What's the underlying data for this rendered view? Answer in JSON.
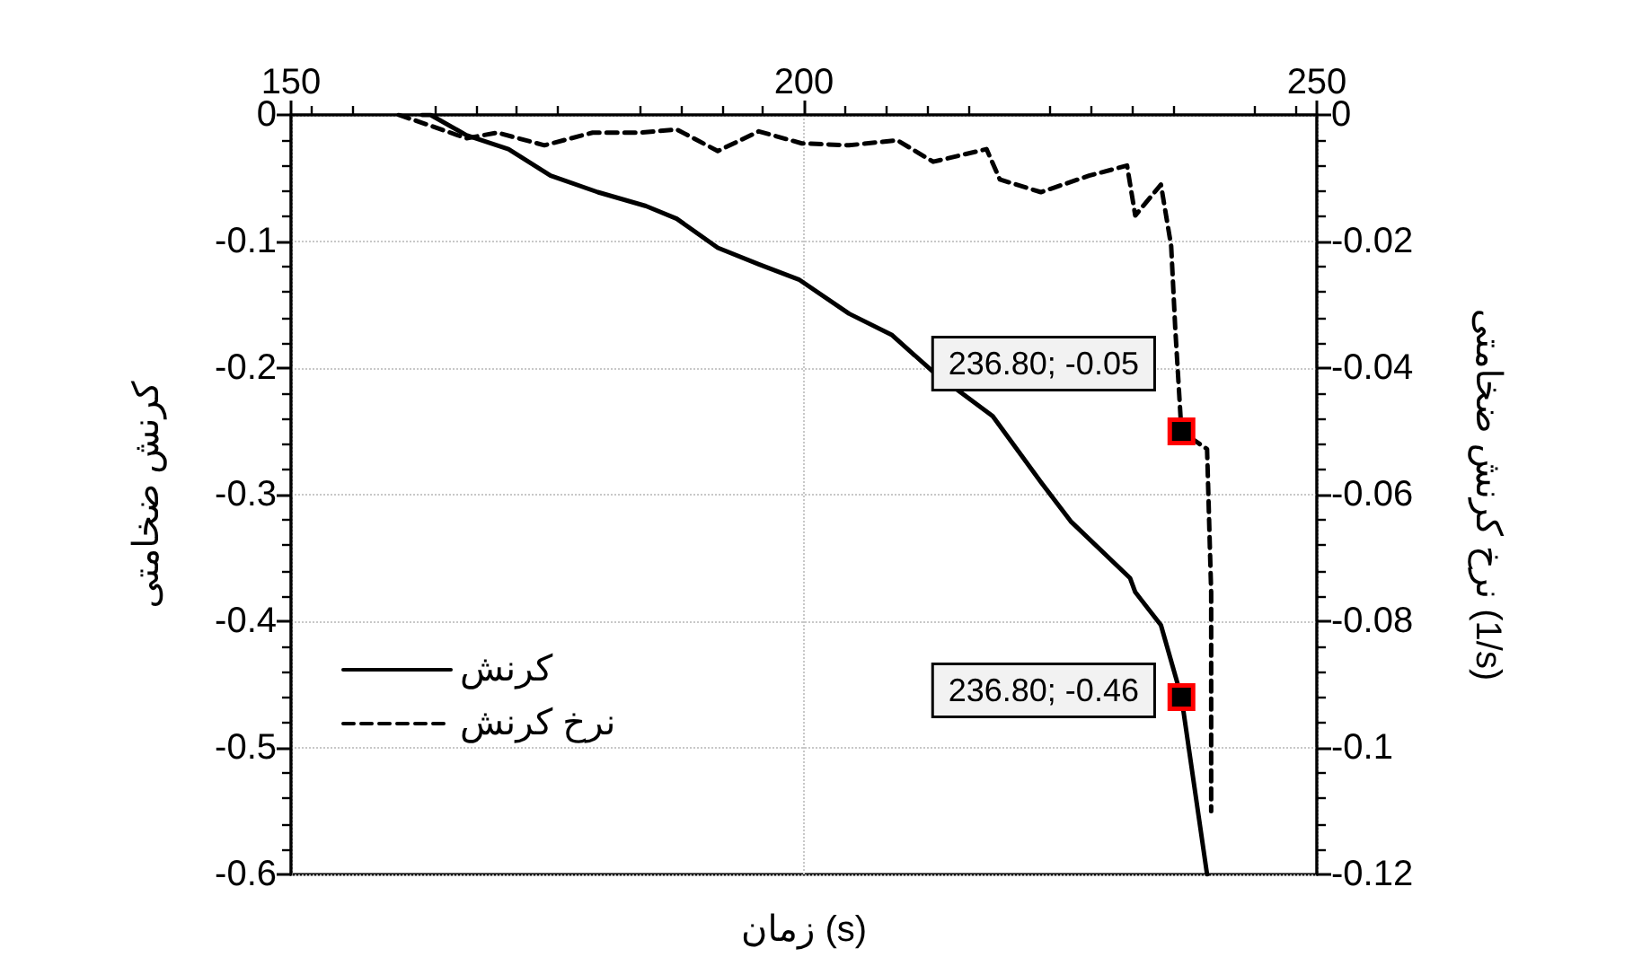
{
  "chart_data": {
    "type": "line",
    "xlabel": "زمان (s)",
    "ylabel": "کرنش ضخامتی",
    "y2label": "نرخ کرنش ضخامتی (1/s)",
    "xlim": [
      150,
      250
    ],
    "xticks": [
      150,
      200,
      250
    ],
    "ylim": [
      -0.6,
      0
    ],
    "yticks": [
      -0.6,
      -0.5,
      -0.4,
      -0.3,
      -0.2,
      -0.1,
      0
    ],
    "y2lim": [
      -0.12,
      0
    ],
    "y2ticks": [
      -0.12,
      -0.1,
      -0.08,
      -0.06,
      -0.04,
      -0.02,
      0
    ],
    "grid": true,
    "legend": "bottom left",
    "marker": "none",
    "series": [
      {
        "name": "کرنش",
        "color": "#000000",
        "line_style": "solid",
        "x": [
          162.8,
          163.6,
          167.1,
          171.2,
          175.3,
          179.9,
          184.6,
          187.6,
          191.6,
          195.6,
          199.5,
          204.4,
          208.6,
          212.6,
          218.4,
          223.1,
          226.0,
          231.8,
          232.3,
          234.8,
          236.8,
          239.3
        ],
        "values": [
          0,
          0,
          -0.016,
          -0.027,
          -0.048,
          -0.061,
          -0.072,
          -0.082,
          -0.105,
          -0.118,
          -0.13,
          -0.157,
          -0.174,
          -0.203,
          -0.238,
          -0.29,
          -0.321,
          -0.366,
          -0.377,
          -0.403,
          -0.46,
          -0.6
        ]
      },
      {
        "name": "نرخ کرنش",
        "color": "#000000",
        "line_style": "dashed",
        "axis": "y2",
        "x": [
          160.5,
          163.6,
          167.1,
          170.1,
          174.7,
          179.4,
          184.1,
          187.6,
          191.6,
          195.6,
          199.8,
          204.4,
          209.1,
          212.6,
          217.8,
          219.1,
          223.1,
          227.8,
          231.5,
          232.3,
          234.8,
          235.8,
          236.2,
          236.8,
          239.3,
          239.7,
          239.7
        ],
        "values": [
          0,
          -0.0017,
          -0.0037,
          -0.0028,
          -0.0048,
          -0.0028,
          -0.0028,
          -0.0023,
          -0.0057,
          -0.0026,
          -0.0045,
          -0.0048,
          -0.004,
          -0.0074,
          -0.0054,
          -0.0102,
          -0.0122,
          -0.0096,
          -0.008,
          -0.0159,
          -0.011,
          -0.0207,
          -0.0338,
          -0.05,
          -0.0528,
          -0.0755,
          -0.11
        ]
      }
    ],
    "annotations": [
      {
        "text": "236.80; -0.05",
        "x": 236.8,
        "y": -0.25
      },
      {
        "text": "236.80; -0.46",
        "x": 236.8,
        "y": -0.46
      }
    ]
  }
}
